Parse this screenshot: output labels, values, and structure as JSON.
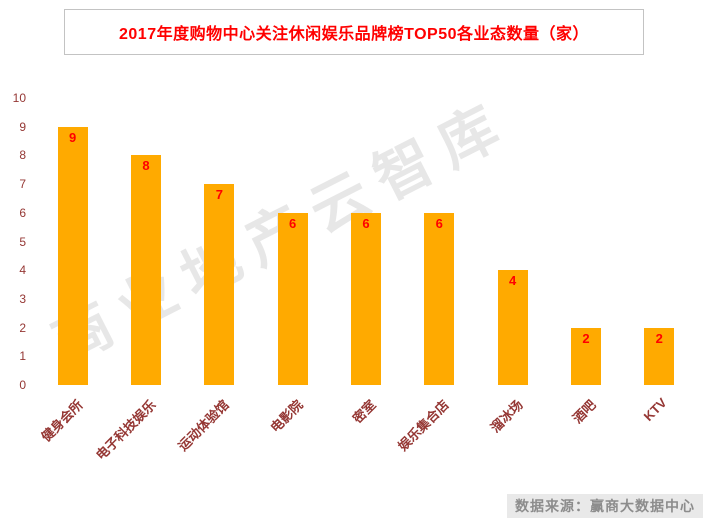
{
  "chart": {
    "title": "2017年度购物中心关注休闲娱乐品牌榜TOP50各业态数量（家）"
  },
  "watermark": "商业地产云智库",
  "footer": {
    "source": "数据来源：赢商大数据中心"
  },
  "chart_data": {
    "type": "bar",
    "title": "2017年度购物中心关注休闲娱乐品牌榜TOP50各业态数量（家）",
    "categories": [
      "健身会所",
      "电子科技娱乐",
      "运动体验馆",
      "电影院",
      "密室",
      "娱乐集合店",
      "溜冰场",
      "酒吧",
      "KTV"
    ],
    "values": [
      9,
      8,
      7,
      6,
      6,
      6,
      4,
      2,
      2
    ],
    "xlabel": "",
    "ylabel": "",
    "ylim": [
      0,
      10
    ],
    "ytick_step": 1,
    "grid": false,
    "legend_position": "none",
    "bar_color": "#FFAA00",
    "value_label_color": "#FF0000",
    "axis_label_color": "#953734"
  }
}
